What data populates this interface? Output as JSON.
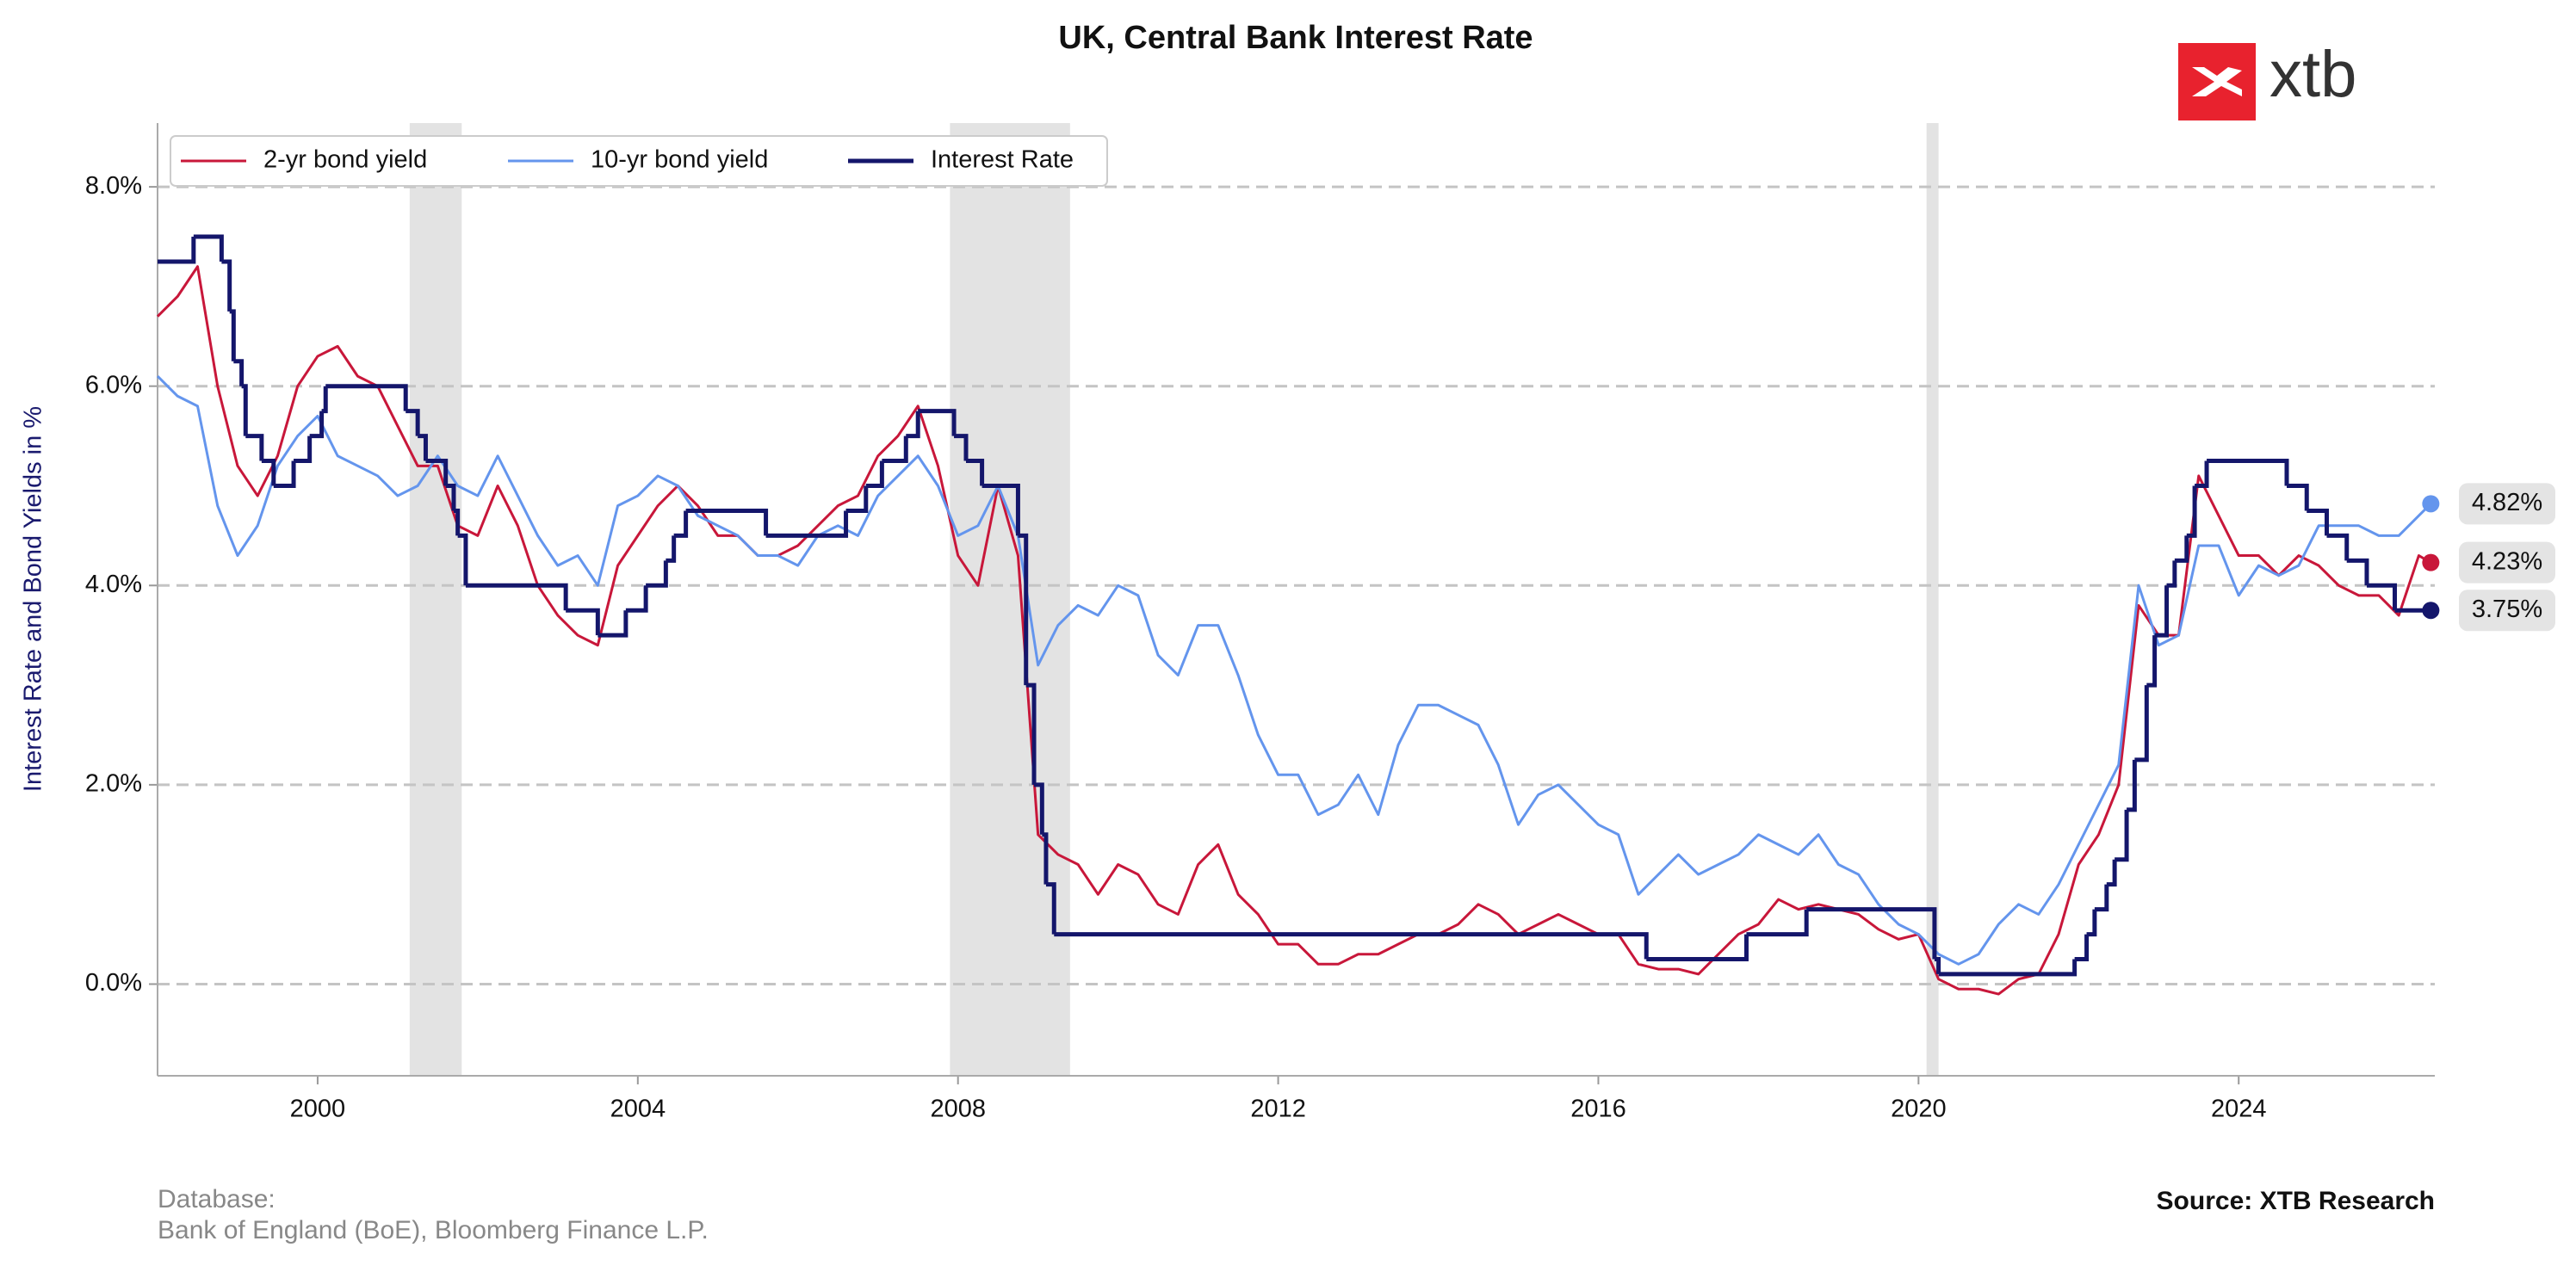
{
  "chart_data": {
    "type": "line",
    "title": "UK, Central Bank Interest Rate",
    "y_label": "Interest Rate and Bond Yields in %",
    "logo_text": "xtb",
    "footer_label": "Database:",
    "footer_source": "Bank of England (BoE), Bloomberg Finance L.P.",
    "source": "Source: XTB Research",
    "xlim": [
      1998.0,
      2026.45
    ],
    "ylim": [
      -0.92,
      8.64
    ],
    "xticks": [
      2000,
      2004,
      2008,
      2012,
      2016,
      2020,
      2024
    ],
    "yticks": [
      {
        "value": 0,
        "label": "0.0%"
      },
      {
        "value": 2,
        "label": "2.0%"
      },
      {
        "value": 4,
        "label": "4.0%"
      },
      {
        "value": 6,
        "label": "6.0%"
      },
      {
        "value": 8,
        "label": "8.0%"
      }
    ],
    "grid": true,
    "legend": "upper left",
    "shaded_periods": [
      [
        2001.15,
        2001.8
      ],
      [
        2007.9,
        2009.4
      ],
      [
        2020.1,
        2020.25
      ]
    ],
    "series": [
      {
        "name": "2-yr bond yield",
        "color": "#c8173a",
        "step": false,
        "last_label": "4.23%",
        "x": [
          1998.0,
          1998.25,
          1998.5,
          1998.75,
          1999.0,
          1999.25,
          1999.5,
          1999.75,
          2000.0,
          2000.25,
          2000.5,
          2000.75,
          2001.0,
          2001.25,
          2001.5,
          2001.75,
          2002.0,
          2002.25,
          2002.5,
          2002.75,
          2003.0,
          2003.25,
          2003.5,
          2003.75,
          2004.0,
          2004.25,
          2004.5,
          2004.75,
          2005.0,
          2005.25,
          2005.5,
          2005.75,
          2006.0,
          2006.25,
          2006.5,
          2006.75,
          2007.0,
          2007.25,
          2007.5,
          2007.75,
          2008.0,
          2008.25,
          2008.5,
          2008.75,
          2009.0,
          2009.25,
          2009.5,
          2009.75,
          2010.0,
          2010.25,
          2010.5,
          2010.75,
          2011.0,
          2011.25,
          2011.5,
          2011.75,
          2012.0,
          2012.25,
          2012.5,
          2012.75,
          2013.0,
          2013.25,
          2013.5,
          2013.75,
          2014.0,
          2014.25,
          2014.5,
          2014.75,
          2015.0,
          2015.25,
          2015.5,
          2015.75,
          2016.0,
          2016.25,
          2016.5,
          2016.75,
          2017.0,
          2017.25,
          2017.5,
          2017.75,
          2018.0,
          2018.25,
          2018.5,
          2018.75,
          2019.0,
          2019.25,
          2019.5,
          2019.75,
          2020.0,
          2020.25,
          2020.5,
          2020.75,
          2021.0,
          2021.25,
          2021.5,
          2021.75,
          2022.0,
          2022.25,
          2022.5,
          2022.75,
          2023.0,
          2023.25,
          2023.5,
          2023.75,
          2024.0,
          2024.25,
          2024.5,
          2024.75,
          2025.0,
          2025.25,
          2025.5,
          2025.75,
          2026.0,
          2026.25,
          2026.4
        ],
        "values": [
          6.7,
          6.9,
          7.2,
          6.0,
          5.2,
          4.9,
          5.3,
          6.0,
          6.3,
          6.4,
          6.1,
          6.0,
          5.6,
          5.2,
          5.2,
          4.6,
          4.5,
          5.0,
          4.6,
          4.0,
          3.7,
          3.5,
          3.4,
          4.2,
          4.5,
          4.8,
          5.0,
          4.8,
          4.5,
          4.5,
          4.3,
          4.3,
          4.4,
          4.6,
          4.8,
          4.9,
          5.3,
          5.5,
          5.8,
          5.2,
          4.3,
          4.0,
          5.0,
          4.3,
          1.5,
          1.3,
          1.2,
          0.9,
          1.2,
          1.1,
          0.8,
          0.7,
          1.2,
          1.4,
          0.9,
          0.7,
          0.4,
          0.4,
          0.2,
          0.2,
          0.3,
          0.3,
          0.4,
          0.5,
          0.5,
          0.6,
          0.8,
          0.7,
          0.5,
          0.6,
          0.7,
          0.6,
          0.5,
          0.5,
          0.2,
          0.15,
          0.15,
          0.1,
          0.3,
          0.5,
          0.6,
          0.85,
          0.75,
          0.8,
          0.75,
          0.7,
          0.55,
          0.45,
          0.5,
          0.05,
          -0.05,
          -0.05,
          -0.1,
          0.05,
          0.1,
          0.5,
          1.2,
          1.5,
          2.0,
          3.8,
          3.5,
          3.5,
          5.1,
          4.7,
          4.3,
          4.3,
          4.1,
          4.3,
          4.2,
          4.0,
          3.9,
          3.9,
          3.7,
          4.3,
          4.23
        ]
      },
      {
        "name": "10-yr bond yield",
        "color": "#6495ed",
        "step": false,
        "last_label": "4.82%",
        "x": [
          1998.0,
          1998.25,
          1998.5,
          1998.75,
          1999.0,
          1999.25,
          1999.5,
          1999.75,
          2000.0,
          2000.25,
          2000.5,
          2000.75,
          2001.0,
          2001.25,
          2001.5,
          2001.75,
          2002.0,
          2002.25,
          2002.5,
          2002.75,
          2003.0,
          2003.25,
          2003.5,
          2003.75,
          2004.0,
          2004.25,
          2004.5,
          2004.75,
          2005.0,
          2005.25,
          2005.5,
          2005.75,
          2006.0,
          2006.25,
          2006.5,
          2006.75,
          2007.0,
          2007.25,
          2007.5,
          2007.75,
          2008.0,
          2008.25,
          2008.5,
          2008.75,
          2009.0,
          2009.25,
          2009.5,
          2009.75,
          2010.0,
          2010.25,
          2010.5,
          2010.75,
          2011.0,
          2011.25,
          2011.5,
          2011.75,
          2012.0,
          2012.25,
          2012.5,
          2012.75,
          2013.0,
          2013.25,
          2013.5,
          2013.75,
          2014.0,
          2014.25,
          2014.5,
          2014.75,
          2015.0,
          2015.25,
          2015.5,
          2015.75,
          2016.0,
          2016.25,
          2016.5,
          2016.75,
          2017.0,
          2017.25,
          2017.5,
          2017.75,
          2018.0,
          2018.25,
          2018.5,
          2018.75,
          2019.0,
          2019.25,
          2019.5,
          2019.75,
          2020.0,
          2020.25,
          2020.5,
          2020.75,
          2021.0,
          2021.25,
          2021.5,
          2021.75,
          2022.0,
          2022.25,
          2022.5,
          2022.75,
          2023.0,
          2023.25,
          2023.5,
          2023.75,
          2024.0,
          2024.25,
          2024.5,
          2024.75,
          2025.0,
          2025.25,
          2025.5,
          2025.75,
          2026.0,
          2026.25,
          2026.4
        ],
        "values": [
          6.1,
          5.9,
          5.8,
          4.8,
          4.3,
          4.6,
          5.2,
          5.5,
          5.7,
          5.3,
          5.2,
          5.1,
          4.9,
          5.0,
          5.3,
          5.0,
          4.9,
          5.3,
          4.9,
          4.5,
          4.2,
          4.3,
          4.0,
          4.8,
          4.9,
          5.1,
          5.0,
          4.7,
          4.6,
          4.5,
          4.3,
          4.3,
          4.2,
          4.5,
          4.6,
          4.5,
          4.9,
          5.1,
          5.3,
          5.0,
          4.5,
          4.6,
          5.0,
          4.5,
          3.2,
          3.6,
          3.8,
          3.7,
          4.0,
          3.9,
          3.3,
          3.1,
          3.6,
          3.6,
          3.1,
          2.5,
          2.1,
          2.1,
          1.7,
          1.8,
          2.1,
          1.7,
          2.4,
          2.8,
          2.8,
          2.7,
          2.6,
          2.2,
          1.6,
          1.9,
          2.0,
          1.8,
          1.6,
          1.5,
          0.9,
          1.1,
          1.3,
          1.1,
          1.2,
          1.3,
          1.5,
          1.4,
          1.3,
          1.5,
          1.2,
          1.1,
          0.8,
          0.6,
          0.5,
          0.3,
          0.2,
          0.3,
          0.6,
          0.8,
          0.7,
          1.0,
          1.4,
          1.8,
          2.2,
          4.0,
          3.4,
          3.5,
          4.4,
          4.4,
          3.9,
          4.2,
          4.1,
          4.2,
          4.6,
          4.6,
          4.6,
          4.5,
          4.5,
          4.7,
          4.82
        ]
      },
      {
        "name": "Interest Rate",
        "color": "#14166b",
        "step": true,
        "last_label": "3.75%",
        "x": [
          1998.0,
          1998.45,
          1998.8,
          1998.9,
          1998.95,
          1999.05,
          1999.1,
          1999.3,
          1999.45,
          1999.7,
          1999.9,
          2000.05,
          2000.1,
          2001.1,
          2001.25,
          2001.35,
          2001.6,
          2001.7,
          2001.75,
          2001.85,
          2003.1,
          2003.5,
          2003.85,
          2004.1,
          2004.35,
          2004.45,
          2004.6,
          2005.6,
          2006.6,
          2006.85,
          2007.05,
          2007.35,
          2007.5,
          2007.95,
          2008.1,
          2008.3,
          2008.75,
          2008.85,
          2008.95,
          2009.05,
          2009.1,
          2009.2,
          2016.6,
          2017.85,
          2018.6,
          2020.2,
          2020.25,
          2021.95,
          2022.1,
          2022.2,
          2022.35,
          2022.45,
          2022.6,
          2022.7,
          2022.85,
          2022.95,
          2023.1,
          2023.2,
          2023.35,
          2023.45,
          2023.6,
          2024.6,
          2024.85,
          2025.1,
          2025.35,
          2025.6,
          2025.95,
          2026.4
        ],
        "values": [
          7.25,
          7.5,
          7.25,
          6.75,
          6.25,
          6.0,
          5.5,
          5.25,
          5.0,
          5.25,
          5.5,
          5.75,
          6.0,
          5.75,
          5.5,
          5.25,
          5.0,
          4.75,
          4.5,
          4.0,
          3.75,
          3.5,
          3.75,
          4.0,
          4.25,
          4.5,
          4.75,
          4.5,
          4.75,
          5.0,
          5.25,
          5.5,
          5.75,
          5.5,
          5.25,
          5.0,
          4.5,
          3.0,
          2.0,
          1.5,
          1.0,
          0.5,
          0.25,
          0.5,
          0.75,
          0.25,
          0.1,
          0.25,
          0.5,
          0.75,
          1.0,
          1.25,
          1.75,
          2.25,
          3.0,
          3.5,
          4.0,
          4.25,
          4.5,
          5.0,
          5.25,
          5.0,
          4.75,
          4.5,
          4.25,
          4.0,
          3.75,
          3.75
        ]
      }
    ]
  }
}
